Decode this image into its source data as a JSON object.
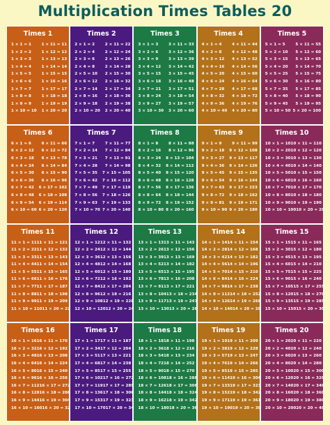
{
  "title": "Multiplication Times Tables 20",
  "column_colors": [
    "#c85f16",
    "#4b1a7e",
    "#1d7a45",
    "#b3711a",
    "#8a2a5a"
  ],
  "tables": [
    {
      "label": "Times 1",
      "n": 1
    },
    {
      "label": "Times 2",
      "n": 2
    },
    {
      "label": "Times 3",
      "n": 3
    },
    {
      "label": "Times 4",
      "n": 4
    },
    {
      "label": "Times 5",
      "n": 5
    },
    {
      "label": "Times 6",
      "n": 6
    },
    {
      "label": "Times 7",
      "n": 7
    },
    {
      "label": "Times 8",
      "n": 8
    },
    {
      "label": "Times 9",
      "n": 9
    },
    {
      "label": "Times 10",
      "n": 10
    },
    {
      "label": "Times 11",
      "n": 11
    },
    {
      "label": "Times 12",
      "n": 12
    },
    {
      "label": "Times 13",
      "n": 13
    },
    {
      "label": "Times 14",
      "n": 14
    },
    {
      "label": "Times 15",
      "n": 15
    },
    {
      "label": "Times 16",
      "n": 16
    },
    {
      "label": "Times 17",
      "n": 17
    },
    {
      "label": "Times 18",
      "n": 18
    },
    {
      "label": "Times 19",
      "n": 19
    },
    {
      "label": "Times 20",
      "n": 20
    }
  ]
}
